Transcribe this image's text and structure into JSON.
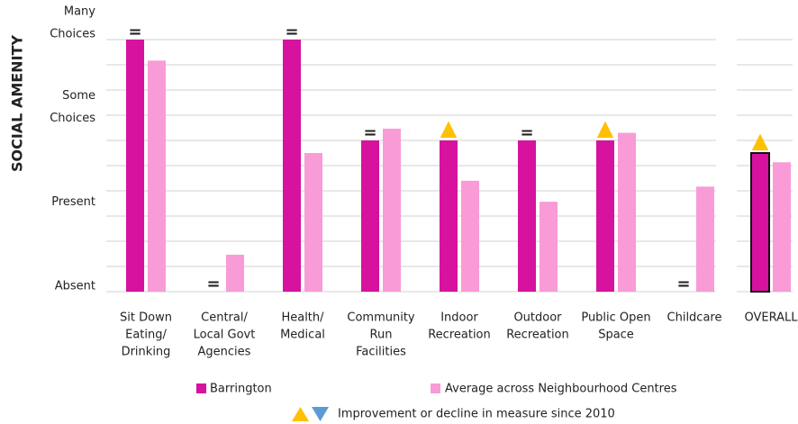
{
  "chart_data": {
    "type": "bar",
    "y_axis_label": "SOCIAL AMENITY",
    "categories": [
      [
        "Sit Down",
        "Eating/",
        "Drinking"
      ],
      [
        "Central/",
        "Local Govt",
        "Agencies"
      ],
      [
        "Health/",
        "Medical"
      ],
      [
        "Community",
        "Run",
        "Facilities"
      ],
      [
        "Indoor",
        "Recreation"
      ],
      [
        "Outdoor",
        "Recreation"
      ],
      [
        "Public Open",
        "Space"
      ],
      [
        "Childcare"
      ],
      [
        "OVERALL"
      ]
    ],
    "series": [
      {
        "name": "Barrington",
        "color": "#d6129e",
        "values": [
          3,
          0,
          3,
          1.8,
          1.8,
          1.8,
          1.8,
          0,
          1.65
        ]
      },
      {
        "name": "Average across Neighbourhood Centres",
        "color": "#f99bd6",
        "values": [
          2.75,
          0.44,
          1.65,
          1.94,
          1.32,
          1.07,
          1.89,
          1.25,
          1.54
        ]
      }
    ],
    "change_markers": [
      "=",
      "=",
      "=",
      "=",
      "▲",
      "=",
      "▲",
      "=",
      "▲"
    ],
    "change_legend": "Improvement or decline in measure since 2010",
    "ylim": [
      0,
      3
    ],
    "yticks": [
      {
        "value": 0,
        "label": [
          "Absent"
        ]
      },
      {
        "value": 1,
        "label": [
          "Present"
        ]
      },
      {
        "value": 2,
        "label": [
          "Some",
          "Choices"
        ]
      },
      {
        "value": 3,
        "label": [
          "Many",
          "Choices"
        ]
      }
    ],
    "grid_lines": [
      0,
      0.3,
      0.6,
      0.9,
      1.2,
      1.5,
      1.8,
      2.1,
      2.4,
      2.7,
      3
    ]
  }
}
